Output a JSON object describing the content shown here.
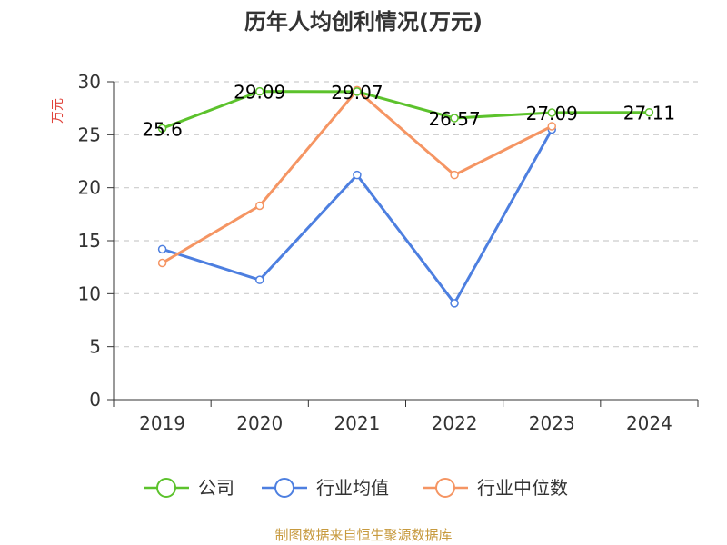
{
  "chart_data": {
    "type": "line",
    "title": "历年人均创利情况(万元)",
    "ylabel": "万元",
    "categories": [
      "2019",
      "2020",
      "2021",
      "2022",
      "2023",
      "2024"
    ],
    "ylim": [
      0,
      30
    ],
    "yticks": [
      0,
      5,
      10,
      15,
      20,
      25,
      30
    ],
    "grid": true,
    "legend_position": "bottom",
    "series": [
      {
        "name": "公司",
        "color": "#5cc22c",
        "values": [
          25.6,
          29.09,
          29.07,
          26.57,
          27.09,
          27.11
        ],
        "show_labels": true
      },
      {
        "name": "行业均值",
        "color": "#4d7fe0",
        "values": [
          14.2,
          11.3,
          21.2,
          9.1,
          25.5,
          null
        ],
        "show_labels": false
      },
      {
        "name": "行业中位数",
        "color": "#f59563",
        "values": [
          12.9,
          18.3,
          29.2,
          21.2,
          25.8,
          null
        ],
        "show_labels": false
      }
    ]
  },
  "labels": {
    "company_2019": "25.6",
    "company_2020": "29.09",
    "company_2021": "29.07",
    "company_2022": "26.57",
    "company_2023": "27.09",
    "company_2024": "27.11"
  },
  "footer": {
    "source": "制图数据来自恒生聚源数据库"
  },
  "colors": {
    "axis": "#333333",
    "grid": "#cccccc",
    "ylabel": "#e0423a",
    "source": "#c79a3e"
  }
}
